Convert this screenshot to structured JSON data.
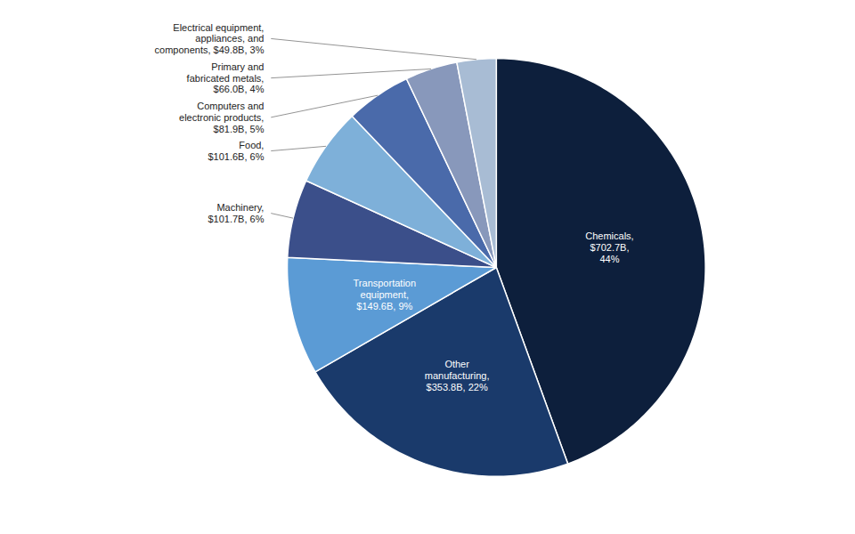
{
  "chart_data": {
    "type": "pie",
    "categories": [
      "Chemicals,\n$702.7B,\n44%",
      "Other\nmanufacturing,\n$353.8B, 22%",
      "Transportation\nequipment,\n$149.6B, 9%",
      "Machinery,\n$101.7B, 6%",
      "Food,\n$101.6B, 6%",
      "Computers and\nelectronic products,\n$81.9B, 5%",
      "Primary and\nfabricated metals,\n$66.0B, 4%",
      "Electrical equipment,\nappliances, and\ncomponents, $49.8B, 3%"
    ],
    "values": [
      44,
      22,
      9,
      6,
      6,
      5,
      4,
      3
    ],
    "colors": [
      "#0d1f3c",
      "#1a3a6b",
      "#5b9bd5",
      "#3b4f8a",
      "#7eb0d9",
      "#4a6aaa",
      "#8898bb",
      "#a8bcd4"
    ]
  }
}
